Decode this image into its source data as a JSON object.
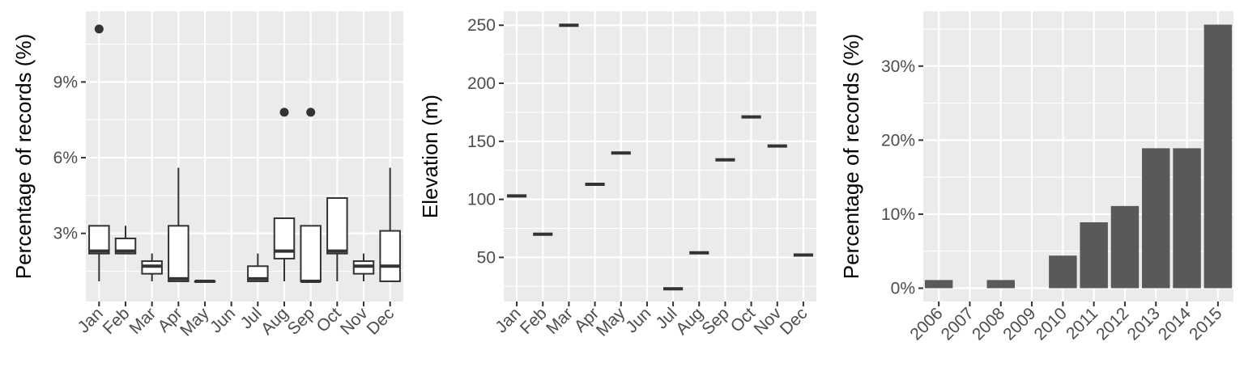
{
  "colors": {
    "panel_background": "#ebebeb",
    "gridline": "#ffffff",
    "box_stroke": "#333333",
    "bar_fill": "#595959",
    "tick_text": "#4d4d4d",
    "axis_title": "#000000"
  },
  "chart_data": [
    {
      "type": "boxplot",
      "ylabel": "Percentage of records (%)",
      "xlabel": "",
      "categories": [
        "Jan",
        "Feb",
        "Mar",
        "Apr",
        "May",
        "Jun",
        "Jul",
        "Aug",
        "Sep",
        "Oct",
        "Nov",
        "Dec"
      ],
      "yticks": [
        3,
        6,
        9
      ],
      "ytick_labels": [
        "3%",
        "6%",
        "9%"
      ],
      "ylim": [
        0.3,
        11.8
      ],
      "grid": true,
      "boxes": [
        {
          "category": "Jan",
          "min": 1.1,
          "q1": 2.2,
          "median": 2.3,
          "q3": 3.3,
          "max": 3.3,
          "outliers": [
            11.1
          ]
        },
        {
          "category": "Feb",
          "min": 2.2,
          "q1": 2.2,
          "median": 2.3,
          "q3": 2.8,
          "max": 3.3,
          "outliers": []
        },
        {
          "category": "Mar",
          "min": 1.1,
          "q1": 1.4,
          "median": 1.7,
          "q3": 1.9,
          "max": 2.2,
          "outliers": []
        },
        {
          "category": "Apr",
          "min": 1.1,
          "q1": 1.1,
          "median": 1.2,
          "q3": 3.3,
          "max": 5.6,
          "outliers": []
        },
        {
          "category": "May",
          "min": 1.1,
          "q1": 1.1,
          "median": 1.1,
          "q3": 1.1,
          "max": 1.1,
          "outliers": []
        },
        {
          "category": "Jul",
          "min": 1.1,
          "q1": 1.1,
          "median": 1.2,
          "q3": 1.7,
          "max": 2.2,
          "outliers": []
        },
        {
          "category": "Aug",
          "min": 1.1,
          "q1": 2.0,
          "median": 2.3,
          "q3": 3.6,
          "max": 3.6,
          "outliers": [
            7.8
          ]
        },
        {
          "category": "Sep",
          "min": 1.1,
          "q1": 1.1,
          "median": 1.1,
          "q3": 3.3,
          "max": 3.3,
          "outliers": [
            7.8
          ]
        },
        {
          "category": "Oct",
          "min": 1.1,
          "q1": 2.2,
          "median": 2.3,
          "q3": 4.4,
          "max": 4.4,
          "outliers": []
        },
        {
          "category": "Nov",
          "min": 1.1,
          "q1": 1.4,
          "median": 1.7,
          "q3": 1.9,
          "max": 2.2,
          "outliers": []
        },
        {
          "category": "Dec",
          "min": 1.1,
          "q1": 1.1,
          "median": 1.7,
          "q3": 3.1,
          "max": 5.6,
          "outliers": []
        }
      ]
    },
    {
      "type": "boxplot",
      "ylabel": "Elevation (m)",
      "xlabel": "",
      "categories": [
        "Jan",
        "Feb",
        "Mar",
        "Apr",
        "May",
        "Jun",
        "Jul",
        "Aug",
        "Sep",
        "Oct",
        "Nov",
        "Dec"
      ],
      "yticks": [
        50,
        100,
        150,
        200,
        250
      ],
      "ytick_labels": [
        "50",
        "100",
        "150",
        "200",
        "250"
      ],
      "ylim": [
        12,
        262
      ],
      "grid": true,
      "values": [
        {
          "category": "Jan",
          "value": 103
        },
        {
          "category": "Feb",
          "value": 70
        },
        {
          "category": "Mar",
          "value": 250
        },
        {
          "category": "Apr",
          "value": 113
        },
        {
          "category": "May",
          "value": 140
        },
        {
          "category": "Jul",
          "value": 23
        },
        {
          "category": "Aug",
          "value": 54
        },
        {
          "category": "Sep",
          "value": 134
        },
        {
          "category": "Oct",
          "value": 171
        },
        {
          "category": "Nov",
          "value": 146
        },
        {
          "category": "Dec",
          "value": 52
        }
      ]
    },
    {
      "type": "bar",
      "ylabel": "Percentage of records (%)",
      "xlabel": "",
      "categories": [
        "2006",
        "2007",
        "2008",
        "2009",
        "2010",
        "2011",
        "2012",
        "2013",
        "2014",
        "2015"
      ],
      "values": [
        1.1,
        0,
        1.1,
        0,
        4.4,
        8.9,
        11.1,
        18.9,
        18.9,
        35.6
      ],
      "yticks": [
        0,
        10,
        20,
        30
      ],
      "ytick_labels": [
        "0%",
        "10%",
        "20%",
        "30%"
      ],
      "ylim": [
        -1.8,
        37.4
      ],
      "grid": true
    }
  ]
}
